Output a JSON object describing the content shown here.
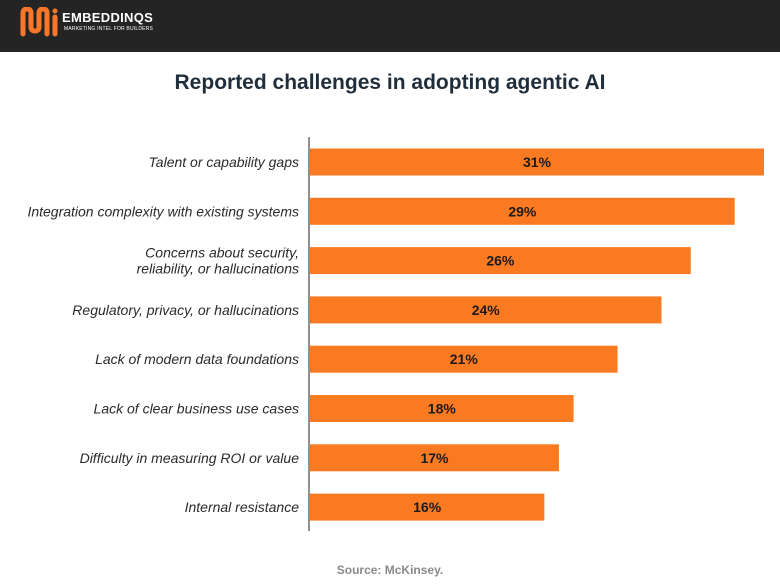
{
  "header": {
    "logo_text": "EMBEDDINQS",
    "logo_tagline": "MARKETING INTEL FOR BUILDERS",
    "brand_color": "#f7772a"
  },
  "source": "Source: McKinsey.",
  "chart_data": {
    "type": "bar",
    "orientation": "horizontal",
    "title": "Reported challenges in adopting agentic AI",
    "categories": [
      [
        "Talent or capability gaps"
      ],
      [
        "Integration complexity with existing systems"
      ],
      [
        "Concerns about security,",
        "reliability, or hallucinations"
      ],
      [
        "Regulatory, privacy, or hallucinations"
      ],
      [
        "Lack of modern data foundations"
      ],
      [
        "Lack of clear business use cases"
      ],
      [
        "Difficulty in measuring ROI or value"
      ],
      [
        "Internal resistance"
      ]
    ],
    "values": [
      31,
      29,
      26,
      24,
      21,
      18,
      17,
      16
    ],
    "value_labels": [
      "31%",
      "29%",
      "26%",
      "24%",
      "21%",
      "18%",
      "17%",
      "16%"
    ],
    "bar_color": "#fa7a22",
    "grid": false,
    "legend": "none"
  }
}
